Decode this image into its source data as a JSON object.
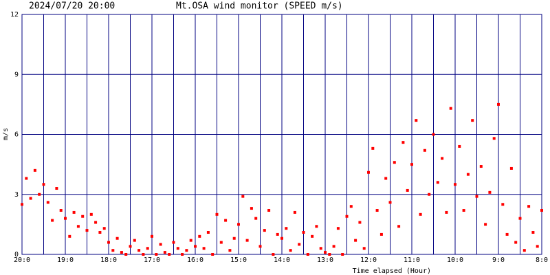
{
  "chart_data": {
    "type": "scatter",
    "date": "2024/07/20 20:00",
    "title": "Mt.OSA wind monitor (SPEED m/s)",
    "y_label": "m/s",
    "x_label": "Time elapsed (Hour)",
    "color": "#ff0000",
    "grid": true,
    "xlim": [
      0,
      12
    ],
    "ylim": [
      0,
      12
    ],
    "xticks": [
      {
        "value": 0,
        "label": "20:0"
      },
      {
        "value": 1,
        "label": "19:0"
      },
      {
        "value": 2,
        "label": "18:0"
      },
      {
        "value": 3,
        "label": "17:0"
      },
      {
        "value": 4,
        "label": "16:0"
      },
      {
        "value": 5,
        "label": "15:0"
      },
      {
        "value": 6,
        "label": "14:0"
      },
      {
        "value": 7,
        "label": "13:0"
      },
      {
        "value": 8,
        "label": "12:0"
      },
      {
        "value": 9,
        "label": "11:0"
      },
      {
        "value": 10,
        "label": "10:0"
      },
      {
        "value": 11,
        "label": "9:0"
      },
      {
        "value": 12,
        "label": "8:0"
      }
    ],
    "yticks": [
      0,
      3,
      6,
      9,
      12
    ],
    "x": [
      0,
      0.1,
      0.2,
      0.3,
      0.4,
      0.5,
      0.6,
      0.7,
      0.8,
      0.9,
      1,
      1.1,
      1.2,
      1.3,
      1.4,
      1.5,
      1.6,
      1.7,
      1.8,
      1.9,
      2,
      2.1,
      2.2,
      2.3,
      2.4,
      2.5,
      2.6,
      2.7,
      2.8,
      2.9,
      3,
      3.1,
      3.2,
      3.3,
      3.4,
      3.5,
      3.6,
      3.7,
      3.8,
      3.9,
      4,
      4.1,
      4.2,
      4.3,
      4.4,
      4.5,
      4.6,
      4.7,
      4.8,
      4.9,
      5,
      5.1,
      5.2,
      5.3,
      5.4,
      5.5,
      5.6,
      5.7,
      5.8,
      5.9,
      6,
      6.1,
      6.2,
      6.3,
      6.4,
      6.5,
      6.6,
      6.7,
      6.8,
      6.9,
      7,
      7.1,
      7.2,
      7.3,
      7.4,
      7.5,
      7.6,
      7.7,
      7.8,
      7.9,
      8,
      8.1,
      8.2,
      8.3,
      8.4,
      8.5,
      8.6,
      8.7,
      8.8,
      8.9,
      9,
      9.1,
      9.2,
      9.3,
      9.4,
      9.5,
      9.6,
      9.7,
      9.8,
      9.9,
      10,
      10.1,
      10.2,
      10.3,
      10.4,
      10.5,
      10.6,
      10.7,
      10.8,
      10.9,
      11,
      11.1,
      11.2,
      11.3,
      11.4,
      11.5,
      11.6,
      11.7,
      11.8,
      11.9,
      12
    ],
    "values": [
      2.5,
      3.8,
      2.8,
      4.2,
      3.0,
      3.5,
      2.6,
      1.7,
      3.3,
      2.2,
      1.8,
      0.9,
      2.1,
      1.4,
      1.9,
      1.2,
      2.0,
      1.6,
      1.1,
      1.3,
      0.6,
      0.2,
      0.8,
      0.1,
      0.0,
      0.4,
      0.7,
      0.2,
      0.0,
      0.3,
      0.9,
      0.0,
      0.5,
      0.1,
      0.0,
      0.6,
      0.3,
      0.0,
      0.2,
      0.7,
      0.4,
      0.9,
      0.3,
      1.1,
      0.0,
      2.0,
      0.6,
      1.7,
      0.2,
      0.8,
      1.5,
      2.9,
      0.7,
      2.3,
      1.8,
      0.4,
      1.2,
      2.2,
      0.0,
      1.0,
      0.8,
      1.3,
      0.2,
      2.1,
      0.5,
      1.1,
      0.0,
      0.9,
      1.4,
      0.3,
      0.1,
      0.0,
      0.4,
      1.3,
      0.0,
      1.9,
      2.4,
      0.7,
      1.6,
      0.3,
      4.1,
      5.3,
      2.2,
      1.0,
      3.8,
      2.6,
      4.6,
      1.4,
      5.6,
      3.2,
      4.5,
      6.7,
      2.0,
      5.2,
      3.0,
      6.0,
      3.6,
      4.8,
      2.1,
      7.3,
      3.5,
      5.4,
      2.2,
      4.0,
      6.7,
      2.9,
      4.4,
      1.5,
      3.1,
      5.8,
      7.5,
      2.5,
      1.0,
      4.3,
      0.6,
      1.8,
      0.2,
      2.4,
      1.1,
      0.4,
      2.2
    ]
  }
}
